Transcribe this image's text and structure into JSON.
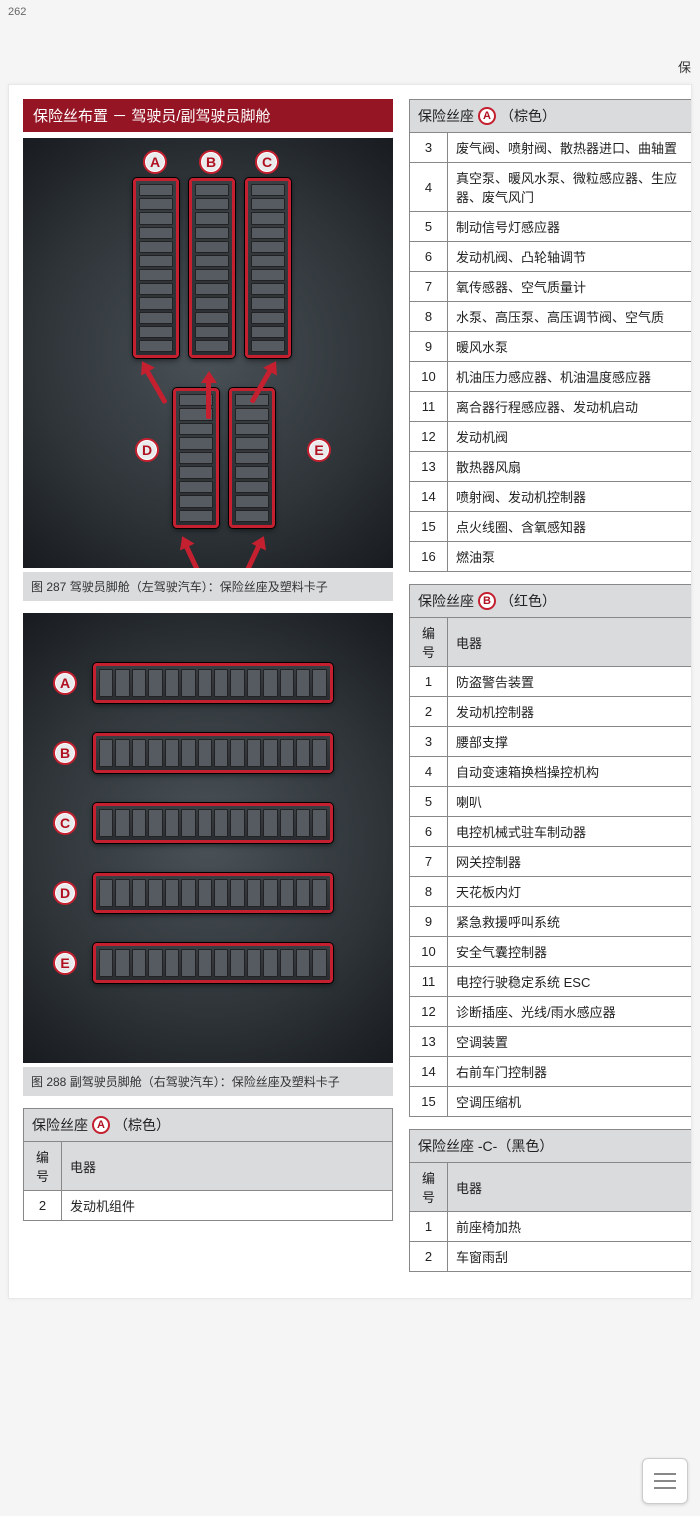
{
  "page_number": "262",
  "header_right": "保",
  "title": "保险丝布置 － 驾驶员/副驾驶员脚舱",
  "figure1": {
    "tag": "B8W-0011",
    "labels": [
      "A",
      "B",
      "C",
      "D",
      "E"
    ],
    "caption": "图 287 驾驶员脚舱（左驾驶汽车）：保险丝座及塑料卡子"
  },
  "figure2": {
    "tag": "B8W-0012",
    "labels": [
      "A",
      "B",
      "C",
      "D",
      "E"
    ],
    "caption": "图 288 副驾驶员脚舱（右驾驶汽车）：保险丝座及塑料卡子"
  },
  "left_table": {
    "title_prefix": "保险丝座",
    "title_badge": "A",
    "title_suffix": "（棕色）",
    "col1": "编号",
    "col2": "电器",
    "rows": [
      {
        "n": "2",
        "t": "发动机组件"
      }
    ]
  },
  "right_tableA_cont": {
    "title_prefix": "保险丝座",
    "title_badge": "A",
    "title_suffix": "（棕色）",
    "rows": [
      {
        "n": "3",
        "t": "废气阀、喷射阀、散热器进口、曲轴置"
      },
      {
        "n": "4",
        "t": "真空泵、暖风水泵、微粒感应器、生应器、废气风门"
      },
      {
        "n": "5",
        "t": "制动信号灯感应器"
      },
      {
        "n": "6",
        "t": "发动机阀、凸轮轴调节"
      },
      {
        "n": "7",
        "t": "氧传感器、空气质量计"
      },
      {
        "n": "8",
        "t": "水泵、高压泵、高压调节阀、空气质"
      },
      {
        "n": "9",
        "t": "暖风水泵"
      },
      {
        "n": "10",
        "t": "机油压力感应器、机油温度感应器"
      },
      {
        "n": "11",
        "t": "离合器行程感应器、发动机启动"
      },
      {
        "n": "12",
        "t": "发动机阀"
      },
      {
        "n": "13",
        "t": "散热器风扇"
      },
      {
        "n": "14",
        "t": "喷射阀、发动机控制器"
      },
      {
        "n": "15",
        "t": "点火线圈、含氧感知器"
      },
      {
        "n": "16",
        "t": "燃油泵"
      }
    ]
  },
  "right_tableB": {
    "title_prefix": "保险丝座",
    "title_badge": "B",
    "title_suffix": "（红色）",
    "col1": "编号",
    "col2": "电器",
    "rows": [
      {
        "n": "1",
        "t": "防盗警告装置"
      },
      {
        "n": "2",
        "t": "发动机控制器"
      },
      {
        "n": "3",
        "t": "腰部支撑"
      },
      {
        "n": "4",
        "t": "自动变速箱换档操控机构"
      },
      {
        "n": "5",
        "t": "喇叭"
      },
      {
        "n": "6",
        "t": "电控机械式驻车制动器"
      },
      {
        "n": "7",
        "t": "网关控制器"
      },
      {
        "n": "8",
        "t": "天花板内灯"
      },
      {
        "n": "9",
        "t": "紧急救援呼叫系统"
      },
      {
        "n": "10",
        "t": "安全气囊控制器"
      },
      {
        "n": "11",
        "t": "电控行驶稳定系统 ESC"
      },
      {
        "n": "12",
        "t": "诊断插座、光线/雨水感应器"
      },
      {
        "n": "13",
        "t": "空调装置"
      },
      {
        "n": "14",
        "t": "右前车门控制器"
      },
      {
        "n": "15",
        "t": "空调压缩机"
      }
    ]
  },
  "right_tableC": {
    "title": "保险丝座 -C-（黑色）",
    "col1": "编号",
    "col2": "电器",
    "rows": [
      {
        "n": "1",
        "t": "前座椅加热"
      },
      {
        "n": "2",
        "t": "车窗雨刮"
      }
    ]
  },
  "colors": {
    "title_bar_bg": "#951525",
    "accent_red": "#c42030",
    "header_grey": "#d9dbdd",
    "border": "#888888"
  }
}
